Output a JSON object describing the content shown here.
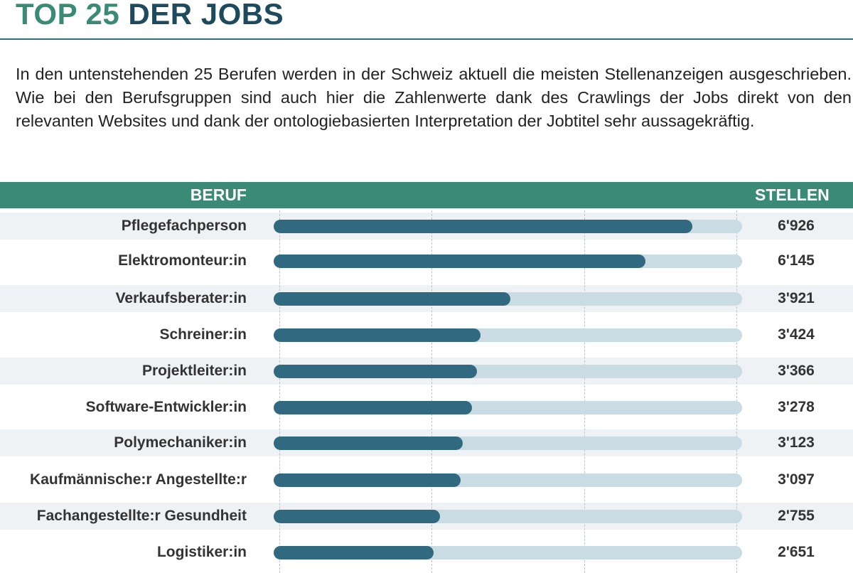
{
  "header": {
    "title_accent": "TOP 25",
    "title_main": "DER JOBS"
  },
  "intro_text": "In den untenstehenden 25 Berufen werden in der Schweiz aktuell die meisten Stellenanzeigen ausgeschrieben. Wie bei den Berufsgruppen sind auch hier die Zahlenwerte dank des Crawlings der Jobs direkt von den relevanten Websites und dank der ontologiebasierten Interpretation der Jobtitel sehr aussagekräftig.",
  "table": {
    "col_beruf": "BERUF",
    "col_stellen": "STELLEN"
  },
  "chart_data": {
    "type": "bar",
    "orientation": "horizontal",
    "title": "",
    "xlabel": "",
    "ylabel": "",
    "xlim": [
      0,
      7750
    ],
    "grid": true,
    "categories": [
      "Pflegefachperson",
      "Elektromonteur:in",
      "Verkaufsberater:in",
      "Schreiner:in",
      "Projektleiter:in",
      "Software-Entwickler:in",
      "Polymechaniker:in",
      "Kaufmännische:r Angestellte:r",
      "Fachangestellte:r Gesundheit",
      "Logistiker:in"
    ],
    "values": [
      6926,
      6145,
      3921,
      3424,
      3366,
      3278,
      3123,
      3097,
      2755,
      2651
    ],
    "value_labels": [
      "6'926",
      "6'145",
      "3'921",
      "3'424",
      "3'366",
      "3'278",
      "3'123",
      "3'097",
      "2'755",
      "2'651"
    ],
    "colors": {
      "bar": "#316a80",
      "track": "#c9dce3",
      "header": "#3a8a76",
      "title_accent": "#3a8a76",
      "title_main": "#1e4a5e"
    }
  }
}
